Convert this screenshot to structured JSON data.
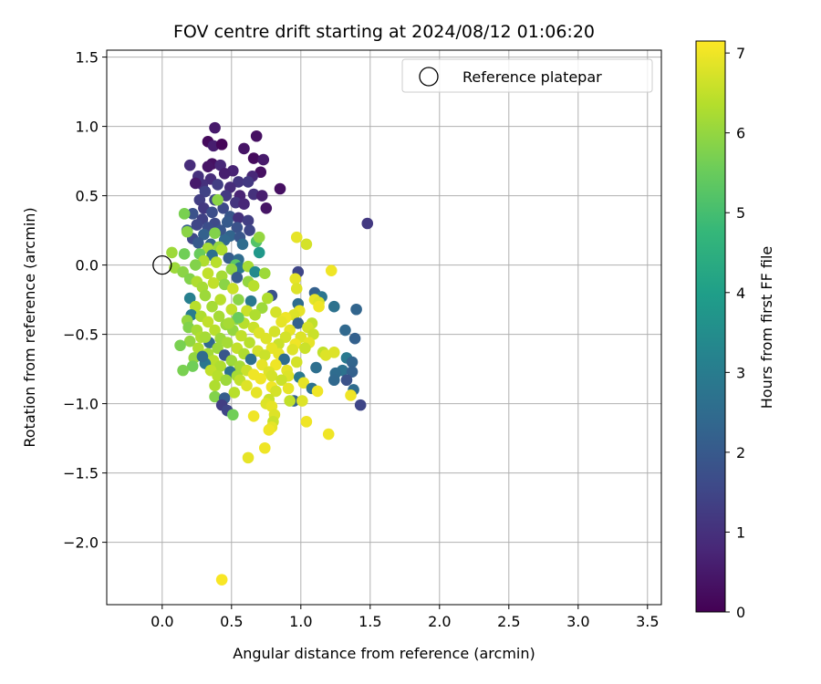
{
  "chart_data": {
    "type": "scatter",
    "title": "FOV centre drift starting at 2024/08/12 01:06:20",
    "xlabel": "Angular distance from reference (arcmin)",
    "ylabel": "Rotation from reference (arcmin)",
    "colorbar_label": "Hours from first FF file",
    "xlim": [
      -0.4,
      3.6
    ],
    "ylim": [
      -2.45,
      1.55
    ],
    "xticks": [
      0.0,
      0.5,
      1.0,
      1.5,
      2.0,
      2.5,
      3.0,
      3.5
    ],
    "xtick_labels": [
      "0.0",
      "0.5",
      "1.0",
      "1.5",
      "2.0",
      "2.5",
      "3.0",
      "3.5"
    ],
    "yticks": [
      1.5,
      1.0,
      0.5,
      0.0,
      -0.5,
      -1.0,
      -1.5,
      -2.0
    ],
    "ytick_labels": [
      "1.5",
      "1.0",
      "0.5",
      "0.0",
      "−0.5",
      "−1.0",
      "−1.5",
      "−2.0"
    ],
    "colorbar_range": [
      0,
      7.15
    ],
    "colorbar_ticks": [
      0,
      1,
      2,
      3,
      4,
      5,
      6,
      7
    ],
    "colormap": "viridis",
    "grid": true,
    "legend": {
      "position": "top-right",
      "entries": [
        "Reference platepar"
      ]
    },
    "reference_point": {
      "x": 0.0,
      "y": 0.0
    },
    "points": [
      [
        0.38,
        0.99,
        0.5
      ],
      [
        0.68,
        0.93,
        0.3
      ],
      [
        0.33,
        0.89,
        0.2
      ],
      [
        0.37,
        0.86,
        0.6
      ],
      [
        0.43,
        0.87,
        0.1
      ],
      [
        0.59,
        0.84,
        0.4
      ],
      [
        0.66,
        0.77,
        0.2
      ],
      [
        0.73,
        0.76,
        0.5
      ],
      [
        0.36,
        0.73,
        0.3
      ],
      [
        0.42,
        0.72,
        0.8
      ],
      [
        0.2,
        0.72,
        0.9
      ],
      [
        0.33,
        0.71,
        0.4
      ],
      [
        0.51,
        0.68,
        0.7
      ],
      [
        0.71,
        0.67,
        0.3
      ],
      [
        0.45,
        0.66,
        0.6
      ],
      [
        0.26,
        0.64,
        1.0
      ],
      [
        0.35,
        0.62,
        0.9
      ],
      [
        0.55,
        0.6,
        1.1
      ],
      [
        0.65,
        0.64,
        0.8
      ],
      [
        0.62,
        0.6,
        1.2
      ],
      [
        0.4,
        0.58,
        1.3
      ],
      [
        0.29,
        0.58,
        1.0
      ],
      [
        0.24,
        0.59,
        0.5
      ],
      [
        0.49,
        0.56,
        0.9
      ],
      [
        0.85,
        0.55,
        0.3
      ],
      [
        0.31,
        0.53,
        1.4
      ],
      [
        0.46,
        0.5,
        1.2
      ],
      [
        0.56,
        0.5,
        0.7
      ],
      [
        0.66,
        0.51,
        1.0
      ],
      [
        0.72,
        0.5,
        0.6
      ],
      [
        0.38,
        0.47,
        1.5
      ],
      [
        0.27,
        0.47,
        1.3
      ],
      [
        0.53,
        0.45,
        1.1
      ],
      [
        0.59,
        0.44,
        0.8
      ],
      [
        0.3,
        0.41,
        1.2
      ],
      [
        0.44,
        0.41,
        1.6
      ],
      [
        0.75,
        0.41,
        0.4
      ],
      [
        0.36,
        0.38,
        1.7
      ],
      [
        0.22,
        0.37,
        1.8
      ],
      [
        0.16,
        0.37,
        5.7
      ],
      [
        0.4,
        0.47,
        5.9
      ],
      [
        0.49,
        0.35,
        1.9
      ],
      [
        0.55,
        0.34,
        1.0
      ],
      [
        0.29,
        0.33,
        1.4
      ],
      [
        0.62,
        0.32,
        1.3
      ],
      [
        0.47,
        0.31,
        2.0
      ],
      [
        0.38,
        0.3,
        1.6
      ],
      [
        0.25,
        0.29,
        1.5
      ],
      [
        0.33,
        0.27,
        1.7
      ],
      [
        0.54,
        0.27,
        1.8
      ],
      [
        0.42,
        0.25,
        1.9
      ],
      [
        0.18,
        0.25,
        2.1
      ],
      [
        0.63,
        0.25,
        1.5
      ],
      [
        0.3,
        0.22,
        2.2
      ],
      [
        0.38,
        0.23,
        5.8
      ],
      [
        0.49,
        0.21,
        2.3
      ],
      [
        0.56,
        0.2,
        1.9
      ],
      [
        0.22,
        0.19,
        1.6
      ],
      [
        0.45,
        0.18,
        2.4
      ],
      [
        0.26,
        0.16,
        2.0
      ],
      [
        0.35,
        0.15,
        2.2
      ],
      [
        0.58,
        0.15,
        2.5
      ],
      [
        0.68,
        0.17,
        5.2
      ],
      [
        0.7,
        0.2,
        6.0
      ],
      [
        0.97,
        0.2,
        6.9
      ],
      [
        1.04,
        0.15,
        6.7
      ],
      [
        1.48,
        0.3,
        1.2
      ],
      [
        0.18,
        0.24,
        5.9
      ],
      [
        0.41,
        0.13,
        6.0
      ],
      [
        0.33,
        0.12,
        6.2
      ],
      [
        0.43,
        0.11,
        6.3
      ],
      [
        0.7,
        0.09,
        3.8
      ],
      [
        0.27,
        0.08,
        5.5
      ],
      [
        0.16,
        0.08,
        5.6
      ],
      [
        0.07,
        0.09,
        6.1
      ],
      [
        0.36,
        0.07,
        2.6
      ],
      [
        0.48,
        0.05,
        2.1
      ],
      [
        0.55,
        0.04,
        2.5
      ],
      [
        0.3,
        0.03,
        6.3
      ],
      [
        0.39,
        0.02,
        6.4
      ],
      [
        0.24,
        0.0,
        5.8
      ],
      [
        0.53,
        0.0,
        5.3
      ],
      [
        0.56,
        -0.02,
        2.8
      ],
      [
        0.62,
        -0.01,
        6.2
      ],
      [
        0.5,
        -0.03,
        6.0
      ],
      [
        0.09,
        -0.02,
        6.1
      ],
      [
        0.15,
        -0.05,
        5.9
      ],
      [
        0.67,
        -0.05,
        3.4
      ],
      [
        0.74,
        -0.06,
        6.1
      ],
      [
        0.33,
        -0.06,
        6.5
      ],
      [
        0.43,
        -0.08,
        6.2
      ],
      [
        0.54,
        -0.09,
        2.0
      ],
      [
        0.2,
        -0.1,
        5.8
      ],
      [
        0.25,
        -0.12,
        6.3
      ],
      [
        0.62,
        -0.12,
        6.0
      ],
      [
        0.37,
        -0.13,
        6.5
      ],
      [
        0.45,
        -0.14,
        5.9
      ],
      [
        0.66,
        -0.15,
        6.4
      ],
      [
        0.29,
        -0.16,
        6.2
      ],
      [
        0.51,
        -0.17,
        6.6
      ],
      [
        0.98,
        -0.05,
        1.5
      ],
      [
        0.96,
        -0.1,
        6.9
      ],
      [
        0.97,
        -0.17,
        6.8
      ],
      [
        1.22,
        -0.04,
        7.0
      ],
      [
        1.1,
        -0.2,
        2.2
      ],
      [
        1.15,
        -0.23,
        2.8
      ],
      [
        1.1,
        -0.25,
        6.9
      ],
      [
        1.13,
        -0.27,
        6.8
      ],
      [
        1.13,
        -0.3,
        7.0
      ],
      [
        1.24,
        -0.3,
        2.7
      ],
      [
        1.4,
        -0.32,
        2.3
      ],
      [
        0.79,
        -0.22,
        1.8
      ],
      [
        0.76,
        -0.24,
        6.3
      ],
      [
        0.98,
        -0.28,
        2.5
      ],
      [
        0.2,
        -0.24,
        3.1
      ],
      [
        0.31,
        -0.22,
        6.1
      ],
      [
        0.42,
        -0.25,
        6.4
      ],
      [
        0.55,
        -0.25,
        5.9
      ],
      [
        0.64,
        -0.26,
        2.9
      ],
      [
        0.24,
        -0.3,
        6.4
      ],
      [
        0.36,
        -0.3,
        6.2
      ],
      [
        0.5,
        -0.32,
        6.5
      ],
      [
        0.72,
        -0.31,
        6.1
      ],
      [
        0.61,
        -0.33,
        6.6
      ],
      [
        0.99,
        -0.33,
        6.9
      ],
      [
        0.95,
        -0.36,
        6.8
      ],
      [
        0.89,
        -0.38,
        7.0
      ],
      [
        0.82,
        -0.34,
        6.7
      ],
      [
        0.67,
        -0.36,
        6.3
      ],
      [
        0.21,
        -0.36,
        3.0
      ],
      [
        0.28,
        -0.37,
        6.3
      ],
      [
        0.41,
        -0.37,
        6.2
      ],
      [
        0.54,
        -0.39,
        5.9
      ],
      [
        0.18,
        -0.4,
        6.0
      ],
      [
        0.33,
        -0.41,
        6.5
      ],
      [
        0.46,
        -0.43,
        6.1
      ],
      [
        0.59,
        -0.42,
        6.4
      ],
      [
        0.86,
        -0.41,
        6.9
      ],
      [
        0.98,
        -0.42,
        2.2
      ],
      [
        1.08,
        -0.42,
        6.5
      ],
      [
        1.05,
        -0.45,
        6.7
      ],
      [
        0.19,
        -0.45,
        5.8
      ],
      [
        0.25,
        -0.47,
        6.2
      ],
      [
        0.38,
        -0.47,
        6.4
      ],
      [
        0.51,
        -0.47,
        6.0
      ],
      [
        0.66,
        -0.45,
        6.6
      ],
      [
        0.7,
        -0.49,
        6.8
      ],
      [
        0.81,
        -0.48,
        6.7
      ],
      [
        0.92,
        -0.47,
        6.9
      ],
      [
        1.32,
        -0.47,
        2.4
      ],
      [
        0.28,
        -0.52,
        6.3
      ],
      [
        0.42,
        -0.53,
        6.1
      ],
      [
        0.57,
        -0.51,
        6.5
      ],
      [
        0.75,
        -0.53,
        6.8
      ],
      [
        0.89,
        -0.52,
        6.7
      ],
      [
        1.0,
        -0.52,
        6.8
      ],
      [
        1.09,
        -0.5,
        6.6
      ],
      [
        1.39,
        -0.53,
        2.2
      ],
      [
        0.2,
        -0.55,
        6.0
      ],
      [
        0.34,
        -0.56,
        2.4
      ],
      [
        0.47,
        -0.56,
        6.2
      ],
      [
        0.63,
        -0.56,
        6.4
      ],
      [
        0.84,
        -0.57,
        6.6
      ],
      [
        0.96,
        -0.57,
        7.0
      ],
      [
        1.06,
        -0.56,
        6.9
      ],
      [
        0.13,
        -0.58,
        5.7
      ],
      [
        0.26,
        -0.6,
        6.3
      ],
      [
        0.4,
        -0.6,
        6.1
      ],
      [
        0.54,
        -0.6,
        6.5
      ],
      [
        0.69,
        -0.62,
        6.7
      ],
      [
        0.79,
        -0.6,
        6.9
      ],
      [
        0.94,
        -0.61,
        6.8
      ],
      [
        1.03,
        -0.6,
        6.6
      ],
      [
        0.33,
        -0.64,
        6.2
      ],
      [
        0.45,
        -0.65,
        1.9
      ],
      [
        0.59,
        -0.64,
        6.3
      ],
      [
        0.74,
        -0.65,
        6.6
      ],
      [
        0.84,
        -0.64,
        6.9
      ],
      [
        1.16,
        -0.63,
        6.5
      ],
      [
        1.24,
        -0.63,
        6.8
      ],
      [
        0.23,
        -0.67,
        6.0
      ],
      [
        0.37,
        -0.69,
        6.4
      ],
      [
        0.5,
        -0.69,
        6.1
      ],
      [
        0.64,
        -0.68,
        2.6
      ],
      [
        0.88,
        -0.68,
        2.5
      ],
      [
        0.97,
        -0.7,
        6.7
      ],
      [
        1.18,
        -0.65,
        6.8
      ],
      [
        1.33,
        -0.67,
        2.9
      ],
      [
        0.31,
        -0.71,
        2.8
      ],
      [
        0.42,
        -0.73,
        6.3
      ],
      [
        0.56,
        -0.73,
        6.2
      ],
      [
        0.72,
        -0.72,
        6.9
      ],
      [
        0.82,
        -0.72,
        7.0
      ],
      [
        1.37,
        -0.7,
        2.3
      ],
      [
        0.22,
        -0.73,
        5.6
      ],
      [
        0.35,
        -0.76,
        6.5
      ],
      [
        0.49,
        -0.77,
        2.7
      ],
      [
        0.61,
        -0.76,
        6.6
      ],
      [
        0.77,
        -0.77,
        6.8
      ],
      [
        0.9,
        -0.76,
        6.9
      ],
      [
        1.11,
        -0.74,
        2.6
      ],
      [
        1.3,
        -0.76,
        2.7
      ],
      [
        0.15,
        -0.76,
        5.7
      ],
      [
        0.4,
        -0.8,
        6.4
      ],
      [
        0.54,
        -0.8,
        6.2
      ],
      [
        0.66,
        -0.79,
        7.0
      ],
      [
        0.79,
        -0.8,
        6.7
      ],
      [
        0.91,
        -0.8,
        6.8
      ],
      [
        1.25,
        -0.78,
        2.5
      ],
      [
        1.37,
        -0.77,
        2.2
      ],
      [
        0.46,
        -0.83,
        6.1
      ],
      [
        0.56,
        -0.83,
        6.5
      ],
      [
        0.71,
        -0.82,
        7.0
      ],
      [
        0.86,
        -0.83,
        6.6
      ],
      [
        0.99,
        -0.81,
        2.9
      ],
      [
        1.02,
        -0.85,
        6.9
      ],
      [
        1.24,
        -0.83,
        2.4
      ],
      [
        0.38,
        -0.87,
        6.3
      ],
      [
        0.61,
        -0.87,
        6.8
      ],
      [
        0.79,
        -0.88,
        7.0
      ],
      [
        0.91,
        -0.89,
        6.9
      ],
      [
        1.08,
        -0.89,
        2.7
      ],
      [
        1.12,
        -0.91,
        7.0
      ],
      [
        1.38,
        -0.9,
        2.5
      ],
      [
        0.52,
        -0.92,
        6.4
      ],
      [
        0.68,
        -0.92,
        6.9
      ],
      [
        0.82,
        -0.91,
        6.7
      ],
      [
        0.38,
        -0.95,
        5.8
      ],
      [
        0.45,
        -0.96,
        2.1
      ],
      [
        0.77,
        -0.97,
        6.6
      ],
      [
        0.75,
        -1.0,
        6.8
      ],
      [
        0.95,
        -0.98,
        2.2
      ],
      [
        0.92,
        -0.98,
        6.5
      ],
      [
        1.01,
        -0.98,
        6.8
      ],
      [
        0.43,
        -1.01,
        1.3
      ],
      [
        0.79,
        -1.02,
        6.9
      ],
      [
        1.43,
        -1.01,
        1.5
      ],
      [
        0.47,
        -1.05,
        1.5
      ],
      [
        0.51,
        -1.08,
        5.6
      ],
      [
        0.66,
        -1.09,
        7.0
      ],
      [
        0.81,
        -1.08,
        6.8
      ],
      [
        1.04,
        -1.13,
        7.0
      ],
      [
        0.8,
        -1.13,
        6.6
      ],
      [
        0.79,
        -1.17,
        6.9
      ],
      [
        0.77,
        -1.19,
        7.0
      ],
      [
        1.2,
        -1.22,
        7.0
      ],
      [
        0.74,
        -1.32,
        7.0
      ],
      [
        0.62,
        -1.39,
        6.9
      ],
      [
        1.36,
        -0.94,
        7.0
      ],
      [
        1.33,
        -0.83,
        1.8
      ],
      [
        0.43,
        -2.27,
        7.1
      ],
      [
        0.29,
        -0.66,
        2.5
      ],
      [
        0.55,
        -0.38,
        5.5
      ],
      [
        0.48,
        -0.42,
        6.2
      ],
      [
        0.31,
        -0.52,
        6.2
      ]
    ]
  }
}
